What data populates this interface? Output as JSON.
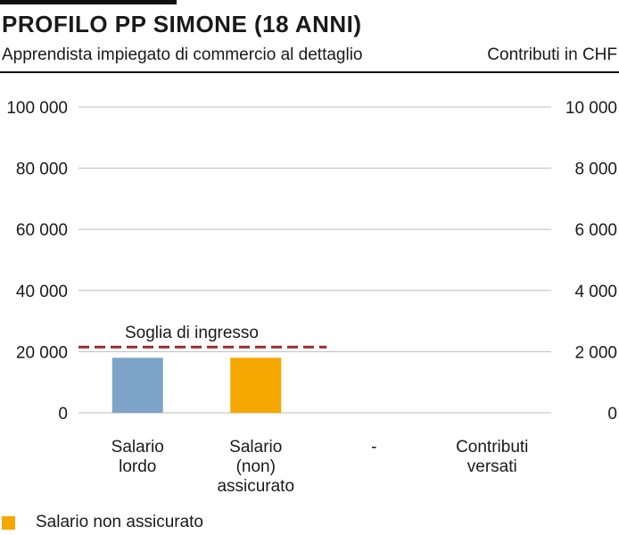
{
  "chart_data": {
    "type": "bar",
    "title": "PROFILO PP SIMONE (18 ANNI)",
    "subtitle": "Apprendista impiegato di commercio al dettaglio",
    "units": "Contributi in CHF",
    "categories": [
      [
        "Salario",
        "lordo"
      ],
      [
        "Salario",
        "(non)",
        "assicurato"
      ],
      [
        "-"
      ],
      [
        "Contributi",
        "versati"
      ]
    ],
    "values": [
      18000,
      18000,
      null,
      null
    ],
    "bar_colors": [
      "#7ea3c8",
      "#f5a800",
      null,
      null
    ],
    "y_left": {
      "min": 0,
      "max": 100000,
      "ticks": [
        0,
        20000,
        40000,
        60000,
        80000,
        100000
      ],
      "tick_labels": [
        "0",
        "20 000",
        "40 000",
        "60 000",
        "80 000",
        "100 000"
      ]
    },
    "y_right": {
      "min": 0,
      "max": 10000,
      "ticks": [
        0,
        2000,
        4000,
        6000,
        8000,
        10000
      ],
      "tick_labels": [
        "0",
        "2 000",
        "4 000",
        "6 000",
        "8 000",
        "10 000"
      ]
    },
    "threshold": {
      "label": "Soglia di ingresso",
      "value": 21510,
      "color": "#9b2c2c"
    },
    "grid": true,
    "legend": {
      "position": "bottom-left",
      "entries": [
        {
          "label": "Salario non assicurato",
          "color": "#f5a800"
        }
      ]
    }
  }
}
